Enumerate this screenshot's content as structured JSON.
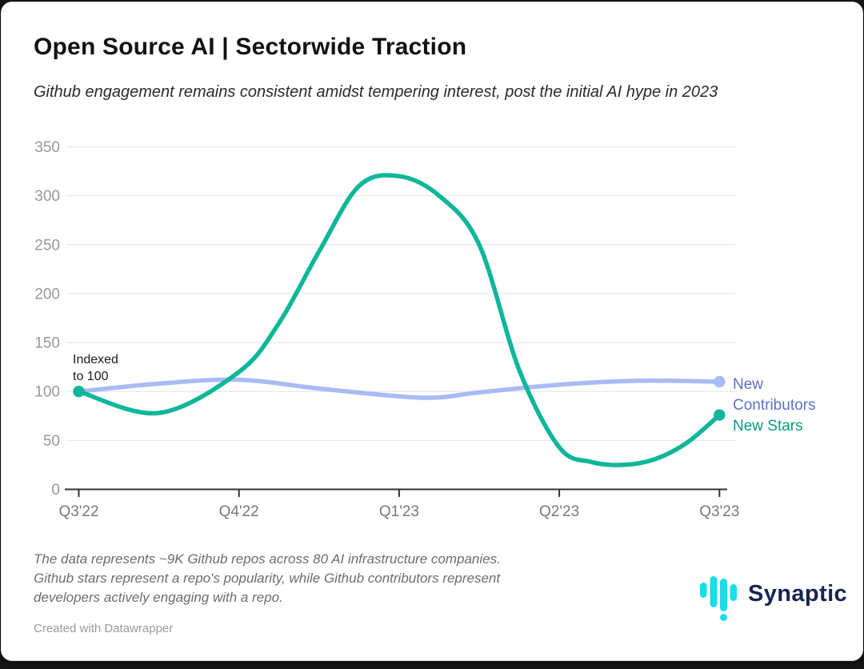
{
  "header": {
    "title": "Open Source AI | Sectorwide Traction",
    "subtitle": "Github engagement remains consistent amidst tempering interest, post the initial AI hype in 2023"
  },
  "chart_data": {
    "type": "line",
    "title": "Open Source AI | Sectorwide Traction",
    "subtitle": "Github engagement remains consistent amidst tempering interest, post the initial AI hype in 2023",
    "x_categories": [
      "Q3'22",
      "Q4'22",
      "Q1'23",
      "Q2'23",
      "Q3'23"
    ],
    "y_ticks": [
      0,
      50,
      100,
      150,
      200,
      250,
      300,
      350
    ],
    "ylim": [
      0,
      350
    ],
    "grid": true,
    "legend_position": "right of line ends",
    "annotation": "Indexed\nto 100",
    "quarter_values": {
      "New Contributors": [
        100,
        112,
        95,
        107,
        110
      ],
      "New Stars": [
        100,
        120,
        320,
        43,
        76
      ]
    },
    "series": [
      {
        "name": "New Contributors",
        "color": "#a9bbf3",
        "label_color": "#5f70c9",
        "points": [
          [
            0,
            100
          ],
          [
            0.5,
            108
          ],
          [
            1,
            112
          ],
          [
            1.5,
            103
          ],
          [
            2,
            95
          ],
          [
            2.25,
            94
          ],
          [
            2.5,
            99
          ],
          [
            3,
            107
          ],
          [
            3.5,
            111
          ],
          [
            4,
            110
          ]
        ],
        "dots": [
          [
            4,
            110
          ]
        ]
      },
      {
        "name": "New Stars",
        "color": "#0eb69a",
        "label_color": "#0a9c7e",
        "points": [
          [
            0,
            100
          ],
          [
            0.5,
            78
          ],
          [
            1,
            120
          ],
          [
            1.25,
            170
          ],
          [
            1.5,
            243
          ],
          [
            1.75,
            310
          ],
          [
            2,
            320
          ],
          [
            2.25,
            300
          ],
          [
            2.5,
            250
          ],
          [
            2.75,
            122
          ],
          [
            3,
            43
          ],
          [
            3.2,
            28
          ],
          [
            3.4,
            25
          ],
          [
            3.6,
            31
          ],
          [
            3.8,
            48
          ],
          [
            4,
            76
          ]
        ],
        "dots": [
          [
            0,
            100
          ],
          [
            4,
            76
          ]
        ]
      }
    ]
  },
  "footer": {
    "note": "The data represents ~9K Github repos across 80 AI infrastructure companies.\nGithub stars represent a repo's popularity, while Github contributors represent\ndevelopers actively engaging with a repo.",
    "credit": "Created with Datawrapper",
    "brand": "Synaptic"
  },
  "colors": {
    "stars_line": "#0eb69a",
    "contributors_line": "#a9bbf3",
    "stars_label": "#0a9c7e",
    "contributors_label": "#5f70c9",
    "axis": "#333333",
    "grid": "#e4e4e4",
    "y_tick_label": "#989898",
    "x_tick_label": "#787878",
    "brand_cyan": "#1adde6",
    "brand_navy": "#182350",
    "card_background": "#ffffff"
  }
}
